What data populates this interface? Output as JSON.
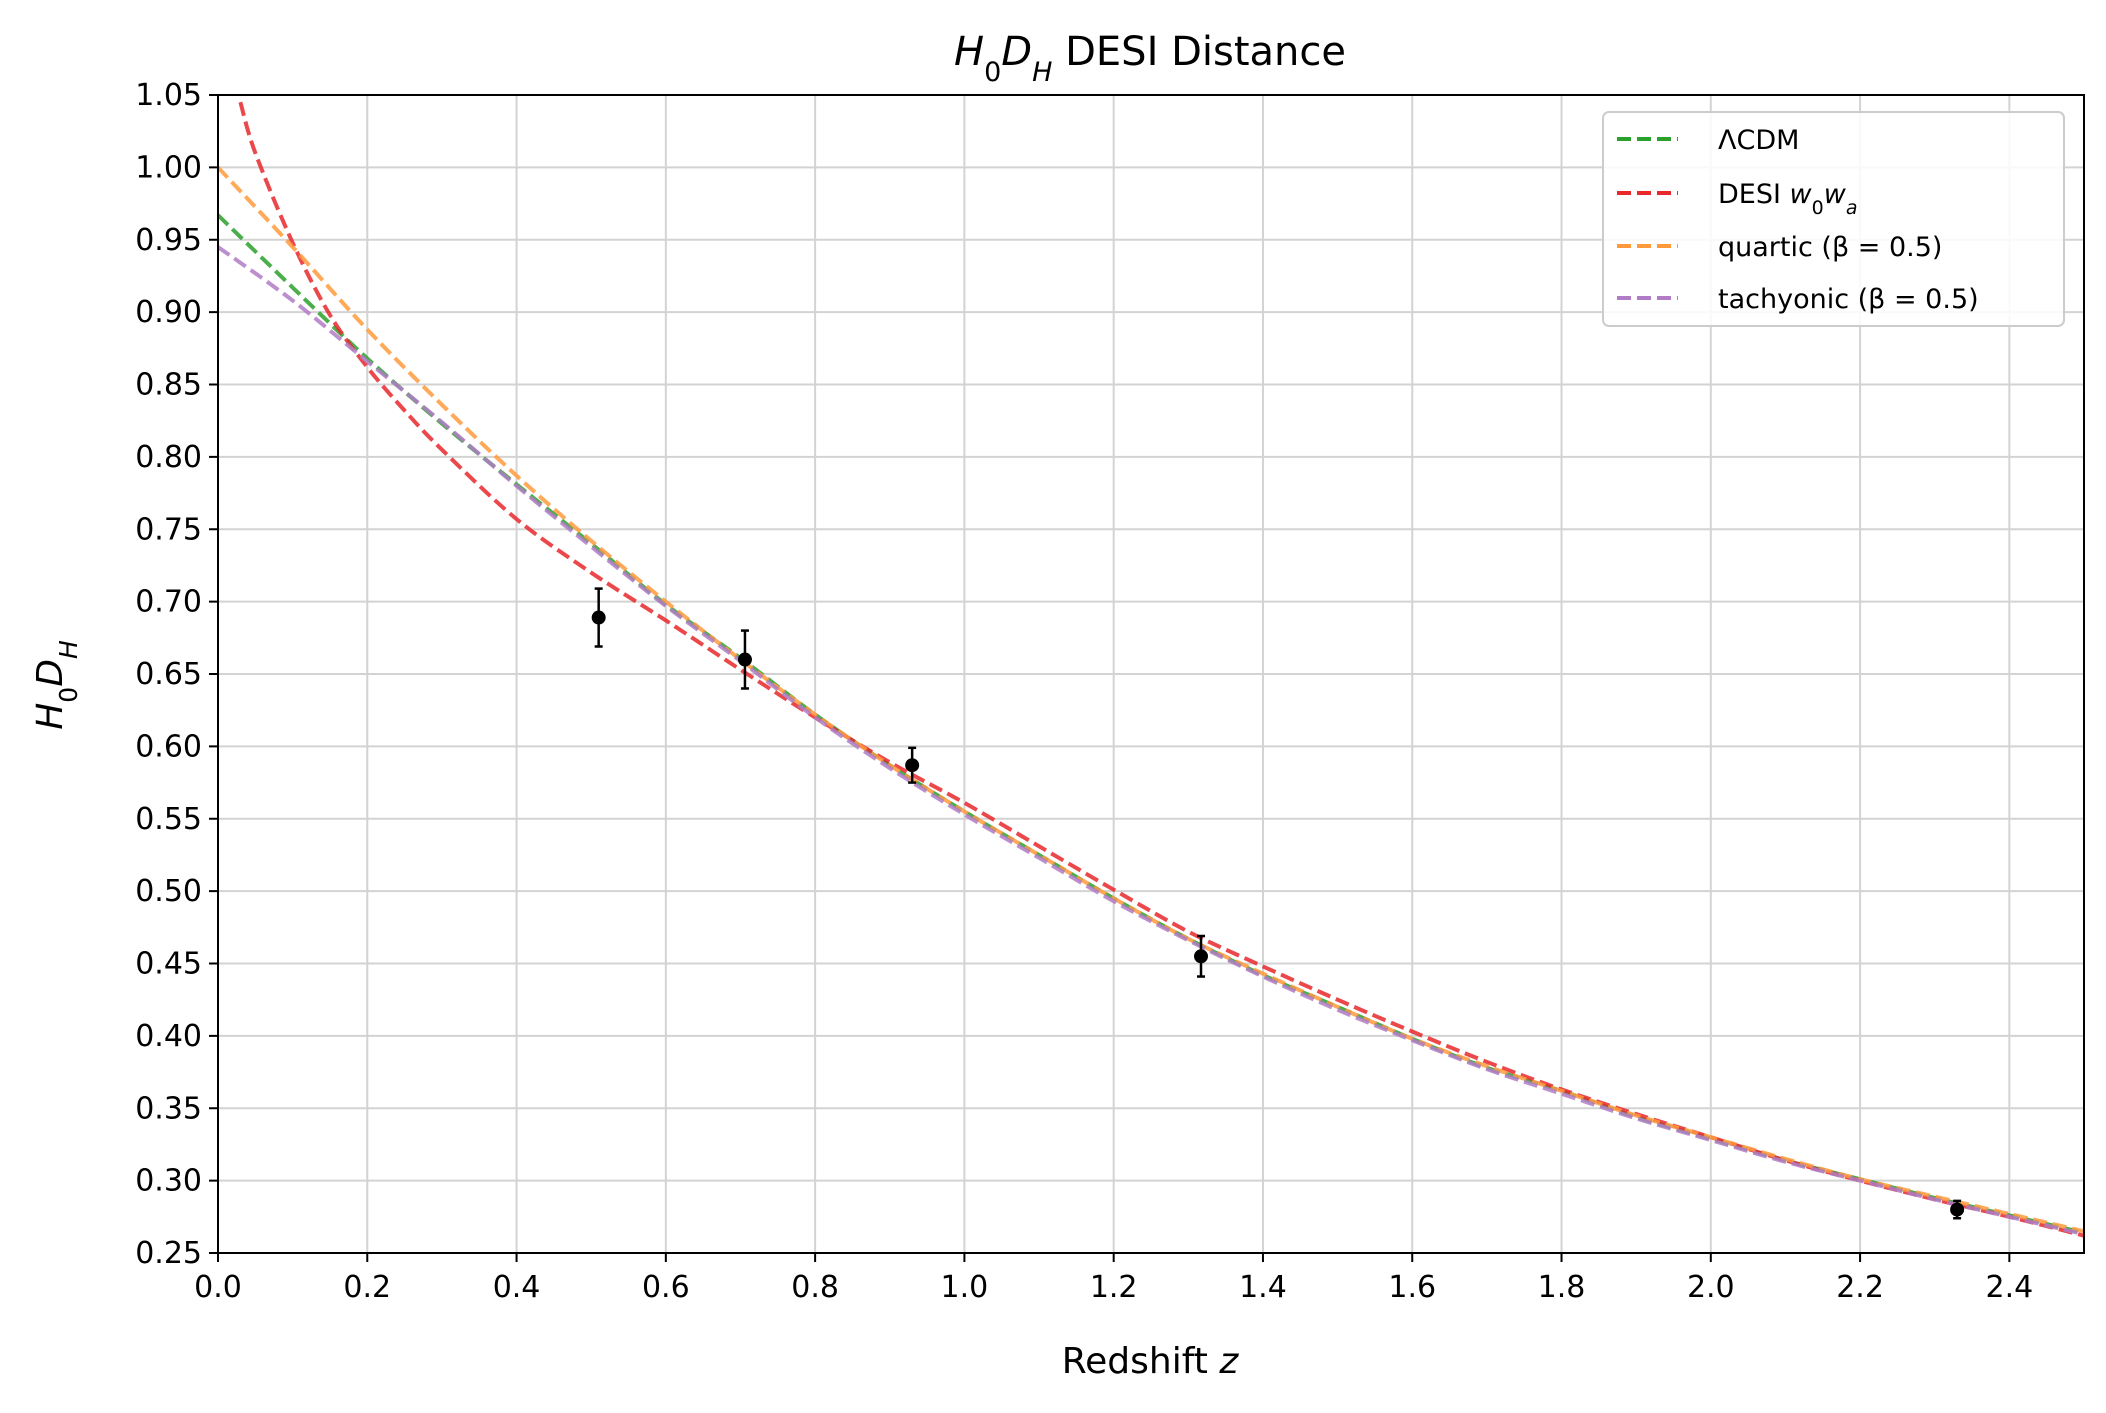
{
  "chart_data": {
    "type": "line",
    "title": {
      "sym": "H",
      "sub1": "0",
      "sym2": "D",
      "sub2": "H",
      "text": "DESI Distance"
    },
    "xlabel": {
      "text": "Redshift",
      "var": "z"
    },
    "ylabel": {
      "sym": "H",
      "sub1": "0",
      "sym2": "D",
      "sub2": "H"
    },
    "xlim": [
      0.0,
      2.5
    ],
    "ylim": [
      0.25,
      1.05
    ],
    "xticks": [
      "0.0",
      "0.2",
      "0.4",
      "0.6",
      "0.8",
      "1.0",
      "1.2",
      "1.4",
      "1.6",
      "1.8",
      "2.0",
      "2.2",
      "2.4"
    ],
    "yticks": [
      "0.25",
      "0.30",
      "0.35",
      "0.40",
      "0.45",
      "0.50",
      "0.55",
      "0.60",
      "0.65",
      "0.70",
      "0.75",
      "0.80",
      "0.85",
      "0.90",
      "0.95",
      "1.00",
      "1.05"
    ],
    "grid": true,
    "legend_position": "top-right",
    "series": [
      {
        "name": "ΛCDM",
        "color": "#2ca02c",
        "style": "dashed",
        "x": [
          0.0,
          0.1,
          0.2,
          0.3,
          0.4,
          0.5,
          0.6,
          0.7,
          0.8,
          0.9,
          1.0,
          1.1,
          1.2,
          1.3,
          1.4,
          1.5,
          1.6,
          1.7,
          1.8,
          1.9,
          2.0,
          2.1,
          2.2,
          2.3,
          2.4,
          2.5
        ],
        "y": [
          0.967,
          0.917,
          0.868,
          0.823,
          0.781,
          0.74,
          0.698,
          0.661,
          0.622,
          0.587,
          0.555,
          0.525,
          0.495,
          0.467,
          0.442,
          0.42,
          0.398,
          0.378,
          0.362,
          0.344,
          0.329,
          0.314,
          0.301,
          0.288,
          0.276,
          0.264
        ]
      },
      {
        "name": "DESI",
        "name_sym": "w",
        "name_sub1": "0",
        "name_sym2": "w",
        "name_sub2": "a",
        "color": "#e8282b",
        "style": "dashed",
        "x": [
          0.03,
          0.05,
          0.1,
          0.15,
          0.2,
          0.25,
          0.3,
          0.4,
          0.5,
          0.6,
          0.7,
          0.8,
          0.9,
          1.0,
          1.1,
          1.2,
          1.3,
          1.4,
          1.5,
          1.6,
          1.7,
          1.8,
          1.9,
          2.0,
          2.1,
          2.2,
          2.3,
          2.4,
          2.5
        ],
        "y": [
          1.045,
          1.01,
          0.948,
          0.898,
          0.862,
          0.832,
          0.805,
          0.757,
          0.72,
          0.687,
          0.653,
          0.62,
          0.589,
          0.561,
          0.531,
          0.501,
          0.472,
          0.448,
          0.425,
          0.403,
          0.382,
          0.363,
          0.346,
          0.33,
          0.314,
          0.3,
          0.287,
          0.275,
          0.262
        ]
      },
      {
        "name": "quartic (β = 0.5)",
        "color": "#ff9a3c",
        "style": "dashed",
        "x": [
          0.0,
          0.1,
          0.2,
          0.3,
          0.4,
          0.5,
          0.6,
          0.7,
          0.8,
          0.9,
          1.0,
          1.1,
          1.2,
          1.3,
          1.4,
          1.5,
          1.6,
          1.7,
          1.8,
          1.9,
          2.0,
          2.1,
          2.2,
          2.3,
          2.4,
          2.5
        ],
        "y": [
          1.0,
          0.945,
          0.888,
          0.836,
          0.787,
          0.742,
          0.7,
          0.66,
          0.622,
          0.587,
          0.555,
          0.525,
          0.495,
          0.467,
          0.443,
          0.42,
          0.398,
          0.379,
          0.362,
          0.345,
          0.33,
          0.315,
          0.301,
          0.289,
          0.277,
          0.265
        ]
      },
      {
        "name": "tachyonic (β = 0.5)",
        "color": "#b07cc6",
        "style": "dashed",
        "x": [
          0.0,
          0.1,
          0.2,
          0.3,
          0.4,
          0.5,
          0.6,
          0.7,
          0.8,
          0.9,
          1.0,
          1.1,
          1.2,
          1.3,
          1.4,
          1.5,
          1.6,
          1.7,
          1.8,
          1.9,
          2.0,
          2.1,
          2.2,
          2.3,
          2.4,
          2.5
        ],
        "y": [
          0.945,
          0.908,
          0.866,
          0.824,
          0.78,
          0.738,
          0.697,
          0.659,
          0.62,
          0.585,
          0.553,
          0.523,
          0.493,
          0.466,
          0.441,
          0.418,
          0.397,
          0.377,
          0.36,
          0.343,
          0.328,
          0.313,
          0.3,
          0.287,
          0.275,
          0.263
        ]
      }
    ],
    "points": {
      "color": "#000000",
      "x": [
        0.51,
        0.706,
        0.93,
        1.317,
        2.33
      ],
      "y": [
        0.689,
        0.66,
        0.587,
        0.455,
        0.28
      ],
      "err": [
        0.02,
        0.02,
        0.012,
        0.014,
        0.006
      ]
    }
  }
}
